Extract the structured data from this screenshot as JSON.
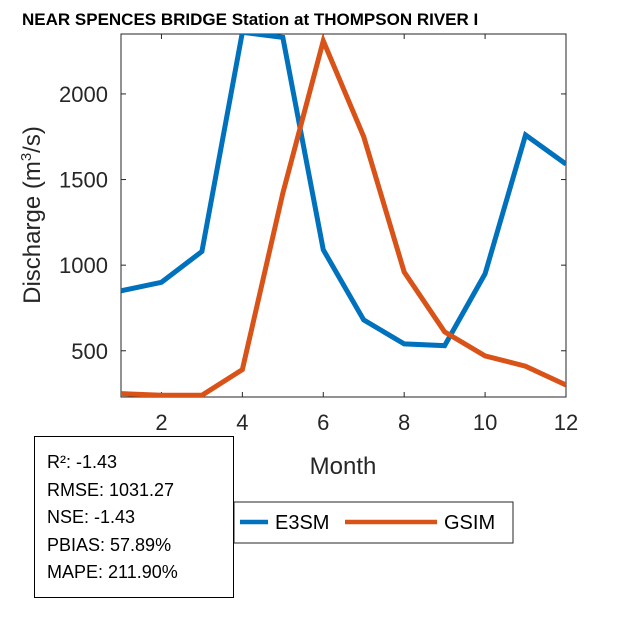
{
  "chart_data": {
    "type": "line",
    "title": "NEAR SPENCES BRIDGE  Station at  THOMPSON RIVER  I",
    "xlabel": "Month",
    "ylabel": "Discharge (m",
    "ylabel_sup": "3",
    "ylabel_end": "/s)",
    "xlim": [
      1,
      12
    ],
    "ylim": [
      230,
      2350
    ],
    "xticks": [
      2,
      4,
      6,
      8,
      10,
      12
    ],
    "yticks": [
      500,
      1000,
      1500,
      2000
    ],
    "xtick_labels": [
      "2",
      "4",
      "6",
      "8",
      "10",
      "12"
    ],
    "ytick_labels": [
      "500",
      "1000",
      "1500",
      "2000"
    ],
    "x": [
      1,
      2,
      3,
      4,
      5,
      6,
      7,
      8,
      9,
      10,
      11,
      12
    ],
    "series": [
      {
        "name": "E3SM",
        "color": "#0072BD",
        "values": [
          850,
          900,
          1080,
          2360,
          2330,
          1090,
          680,
          540,
          530,
          950,
          1760,
          1590
        ]
      },
      {
        "name": "GSIM",
        "color": "#D95319",
        "values": [
          250,
          240,
          240,
          390,
          1420,
          2310,
          1750,
          960,
          610,
          470,
          410,
          300
        ]
      }
    ],
    "legend": {
      "entries": [
        "E3SM",
        "GSIM"
      ],
      "position": "bottom-right"
    }
  },
  "stats": {
    "r2": "R²: -1.43",
    "rmse": "RMSE: 1031.27",
    "nse": "NSE: -1.43",
    "pbias": "PBIAS: 57.89%",
    "mape": "MAPE: 211.90%"
  }
}
